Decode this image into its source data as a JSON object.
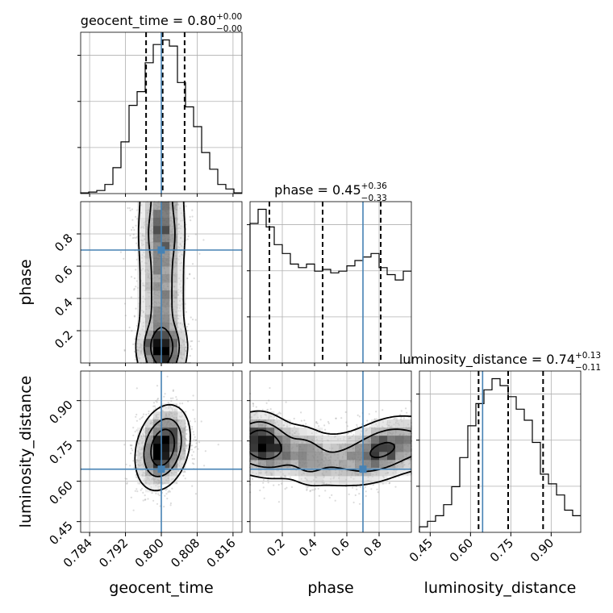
{
  "params": [
    {
      "name": "geocent_time",
      "median": "0.80",
      "plus": "+0.00",
      "minus": "−0.00",
      "truth": 0.8,
      "range": [
        0.782,
        0.818
      ],
      "ticks": [
        "0.784",
        "0.792",
        "0.800",
        "0.808",
        "0.816"
      ],
      "tick_values": [
        0.784,
        0.792,
        0.8,
        0.808,
        0.816
      ]
    },
    {
      "name": "phase",
      "median": "0.45",
      "plus": "+0.36",
      "minus": "−0.33",
      "truth": 0.7,
      "range": [
        0.0,
        1.0
      ],
      "ticks": [
        "0.2",
        "0.4",
        "0.6",
        "0.8"
      ],
      "tick_values": [
        0.2,
        0.4,
        0.6,
        0.8
      ]
    },
    {
      "name": "luminosity_distance",
      "median": "0.74",
      "plus": "+0.13",
      "minus": "−0.11",
      "truth": 0.645,
      "range": [
        0.41,
        1.01
      ],
      "ticks": [
        "0.45",
        "0.60",
        "0.75",
        "0.90"
      ],
      "tick_values": [
        0.45,
        0.6,
        0.75,
        0.9
      ]
    }
  ],
  "titles": {
    "geocent_time": {
      "main": "geocent_time = 0.80",
      "sup": "+0.00",
      "sub": "−0.00"
    },
    "phase": {
      "main": "phase = 0.45",
      "sup": "+0.36",
      "sub": "−0.33"
    },
    "luminosity_distance": {
      "main": "luminosity_distance = 0.74",
      "sup": "+0.13",
      "sub": "−0.11"
    }
  },
  "chart_data": {
    "type": "corner",
    "title": "",
    "parameters": [
      "geocent_time",
      "phase",
      "luminosity_distance"
    ],
    "truths": {
      "geocent_time": 0.8,
      "phase": 0.7,
      "luminosity_distance": 0.645
    },
    "quantiles": {
      "geocent_time": [
        0.7966,
        0.8003,
        0.8052
      ],
      "phase": [
        0.12,
        0.45,
        0.81
      ],
      "luminosity_distance": [
        0.63,
        0.74,
        0.87
      ]
    },
    "histograms": {
      "geocent_time": {
        "edges": [
          0.782,
          0.7838,
          0.7856,
          0.7874,
          0.7892,
          0.791,
          0.7928,
          0.7946,
          0.7964,
          0.7982,
          0.8,
          0.8018,
          0.8036,
          0.8054,
          0.8072,
          0.809,
          0.8108,
          0.8126,
          0.8144,
          0.8162,
          0.818
        ],
        "counts": [
          0.5,
          1,
          2,
          6,
          17,
          34,
          58,
          67,
          86,
          98,
          101,
          97,
          73,
          57,
          44,
          27,
          16,
          6,
          3,
          0.5
        ]
      },
      "phase": {
        "edges": [
          0,
          0.05,
          0.1,
          0.15,
          0.2,
          0.25,
          0.3,
          0.35,
          0.4,
          0.45,
          0.5,
          0.55,
          0.6,
          0.65,
          0.7,
          0.75,
          0.8,
          0.85,
          0.9,
          0.95,
          1.0
        ],
        "counts": [
          79,
          87,
          77,
          67,
          62,
          56,
          54,
          56,
          52,
          53,
          51,
          52,
          55,
          58,
          60,
          62,
          54,
          50,
          47,
          52
        ]
      },
      "luminosity_distance": {
        "edges": [
          0.41,
          0.44,
          0.47,
          0.5,
          0.53,
          0.56,
          0.59,
          0.62,
          0.65,
          0.68,
          0.71,
          0.74,
          0.77,
          0.8,
          0.83,
          0.86,
          0.89,
          0.92,
          0.95,
          0.98,
          1.01
        ],
        "counts": [
          4,
          8,
          12,
          20,
          33,
          54,
          77,
          93,
          103,
          111,
          106,
          98,
          89,
          81,
          65,
          42,
          35,
          27,
          16,
          12
        ]
      }
    },
    "pairs": [
      {
        "x": "geocent_time",
        "y": "phase"
      },
      {
        "x": "geocent_time",
        "y": "luminosity_distance"
      },
      {
        "x": "phase",
        "y": "luminosity_distance"
      }
    ],
    "axis_labels": {
      "x": [
        "geocent_time",
        "phase",
        "luminosity_distance"
      ],
      "y": [
        "phase",
        "luminosity_distance"
      ]
    },
    "grid": true
  }
}
